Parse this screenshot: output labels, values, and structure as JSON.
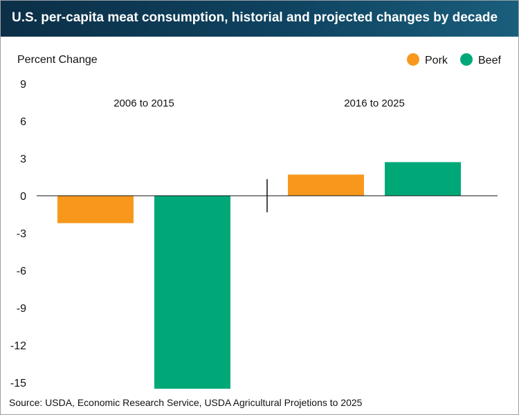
{
  "header": {
    "title": "U.S. per-capita meat consumption, historial and projected changes by decade"
  },
  "chart_data": {
    "type": "bar",
    "title": "U.S. per-capita meat consumption, historial and projected changes by decade",
    "ylabel": "Percent Change",
    "xlabel": "",
    "ylim": [
      -15,
      9
    ],
    "yticks": [
      9,
      6,
      3,
      0,
      -3,
      -6,
      -9,
      -12,
      -15
    ],
    "grid": false,
    "legend_position": "top-right",
    "categories": [
      "2006 to 2015",
      "2016 to 2025"
    ],
    "series": [
      {
        "name": "Pork",
        "color": "#f7981d",
        "values": [
          -2.2,
          1.7
        ]
      },
      {
        "name": "Beef",
        "color": "#00a878",
        "values": [
          -15.5,
          2.7
        ]
      }
    ]
  },
  "footer": {
    "source": "Source: USDA, Economic Research Service, USDA Agricultural Projetions to 2025"
  }
}
